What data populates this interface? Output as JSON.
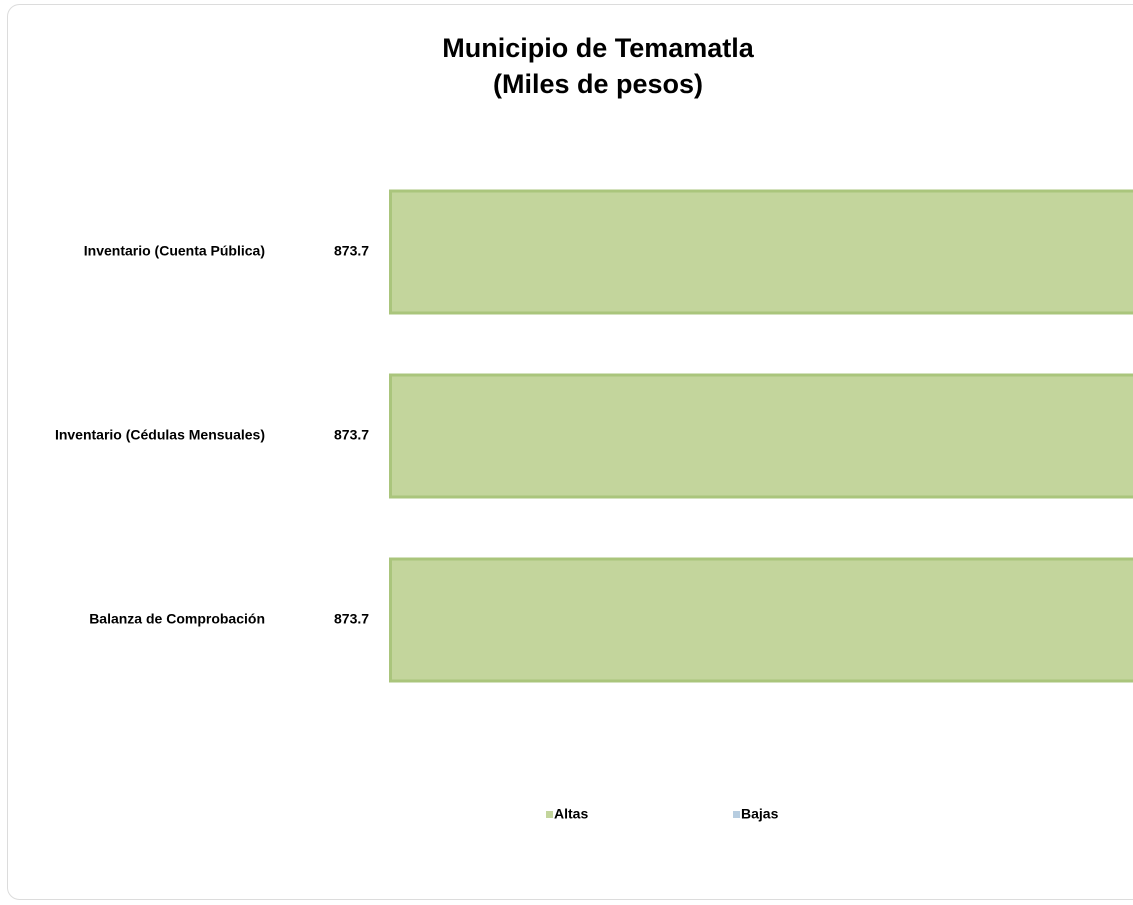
{
  "chart_data": {
    "type": "hbar",
    "title": [
      "Municipio de Temamatla",
      "(Miles de pesos)"
    ],
    "categories": [
      "Inventario (Cuenta Pública)",
      "Inventario (Cédulas Mensuales)",
      "Balanza de Comprobación"
    ],
    "series": [
      {
        "name": "Altas",
        "color": "#c3d59c",
        "values": [
          873.7,
          873.7,
          873.7
        ]
      },
      {
        "name": "Bajas",
        "color": "#b7cde0",
        "values": [
          null,
          null,
          null
        ]
      }
    ],
    "legend": "bottom"
  }
}
